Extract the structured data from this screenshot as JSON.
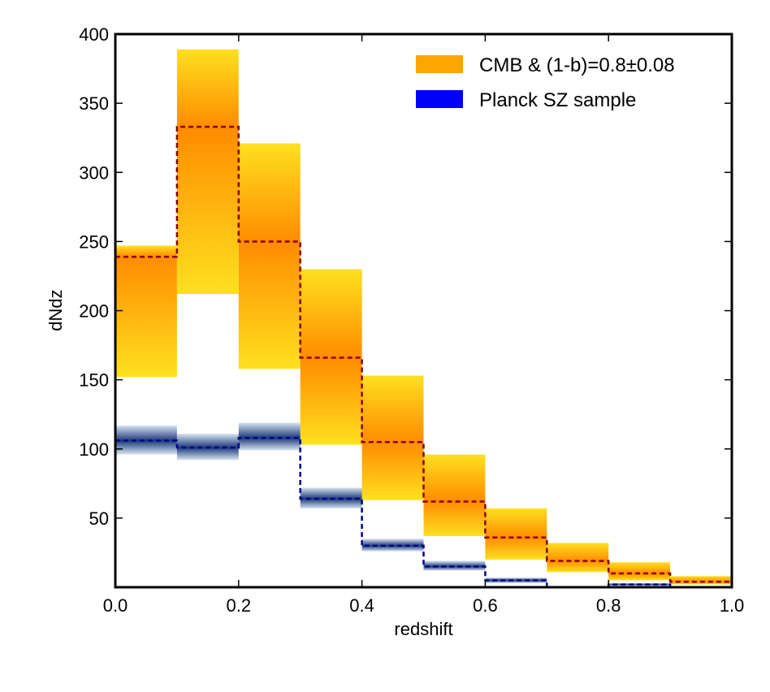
{
  "chart_data": {
    "type": "bar",
    "title": "",
    "xlabel": "redshift",
    "ylabel": "dNdz",
    "xlim": [
      0.0,
      1.0
    ],
    "ylim": [
      0,
      400
    ],
    "xticks": [
      0.0,
      0.2,
      0.4,
      0.6,
      0.8,
      1.0
    ],
    "xtick_labels": [
      "0.0",
      "0.2",
      "0.4",
      "0.6",
      "0.8",
      "1.0"
    ],
    "yticks": [
      50,
      100,
      150,
      200,
      250,
      300,
      350,
      400
    ],
    "ytick_labels": [
      "50",
      "100",
      "150",
      "200",
      "250",
      "300",
      "350",
      "400"
    ],
    "bin_edges": [
      0.0,
      0.1,
      0.2,
      0.3,
      0.4,
      0.5,
      0.6,
      0.7,
      0.8,
      0.9,
      1.0
    ],
    "grid": false,
    "legend_position": "top-right",
    "series": [
      {
        "name": "CMB & (1-b)=0.8±0.08",
        "color_band": "#ffa500",
        "color_center": "#ff8c00",
        "color_edge": "#ffe020",
        "line_color": "#8b0000",
        "values": [
          239,
          333,
          250,
          166,
          105,
          62,
          36,
          19,
          10,
          4
        ],
        "lower": [
          152,
          212,
          158,
          103,
          63,
          37,
          20,
          11,
          5,
          2
        ],
        "upper": [
          247,
          389,
          321,
          230,
          153,
          96,
          57,
          32,
          18,
          8
        ]
      },
      {
        "name": "Planck SZ sample",
        "color_band": "#0000ff",
        "color_center": "#1a3a7a",
        "color_edge": "#d8e4f0",
        "line_color": "#00008b",
        "values": [
          106,
          101,
          108,
          64,
          30,
          15,
          5,
          0,
          2,
          0
        ],
        "lower": [
          96,
          92,
          99,
          57,
          26,
          12,
          3,
          0,
          1,
          0
        ],
        "upper": [
          117,
          111,
          119,
          72,
          35,
          19,
          7,
          0,
          3,
          0
        ]
      }
    ]
  }
}
